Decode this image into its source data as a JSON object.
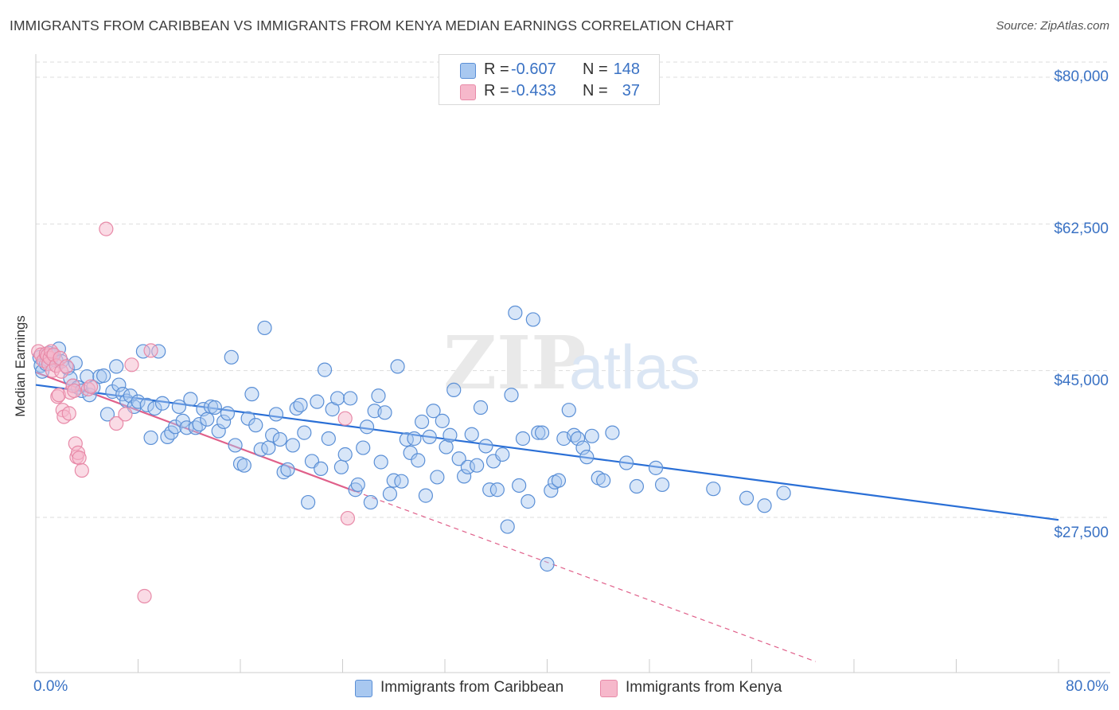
{
  "title": "IMMIGRANTS FROM CARIBBEAN VS IMMIGRANTS FROM KENYA MEDIAN EARNINGS CORRELATION CHART",
  "source": "Source: ZipAtlas.com",
  "watermark": {
    "zip": "ZIP",
    "atlas": "atlas"
  },
  "colors": {
    "caribbean_fill": "#a8c8f0",
    "caribbean_stroke": "#5a8fd6",
    "caribbean_line": "#2a6fd6",
    "kenya_fill": "#f6b8cb",
    "kenya_stroke": "#e88aa8",
    "kenya_line": "#e0608a",
    "tick_text": "#3a72c4",
    "grid": "#dddddd"
  },
  "legend": {
    "rows": [
      {
        "r_label": "R =",
        "r_value": "-0.607",
        "n_label": "N =",
        "n_value": "148",
        "series": "caribbean"
      },
      {
        "r_label": "R =",
        "r_value": "-0.433",
        "n_label": "N =",
        "n_value": "37",
        "series": "kenya"
      }
    ]
  },
  "bottom_legend": [
    "Immigrants from Caribbean",
    "Immigrants from Kenya"
  ],
  "chart_data": {
    "type": "scatter",
    "title": "IMMIGRANTS FROM CARIBBEAN VS IMMIGRANTS FROM KENYA MEDIAN EARNINGS CORRELATION CHART",
    "xlabel": "",
    "ylabel": "Median Earnings",
    "xlim": [
      0,
      80
    ],
    "ylim": [
      12000,
      83000
    ],
    "x_tick_labels": [
      "0.0%",
      "80.0%"
    ],
    "y_ticks": [
      27500,
      45000,
      62500,
      80000
    ],
    "y_tick_labels": [
      "$27,500",
      "$45,000",
      "$62,500",
      "$80,000"
    ],
    "grid": true,
    "legend_position": "top-center",
    "series": [
      {
        "name": "Immigrants from Caribbean",
        "r": -0.607,
        "n": 148,
        "trend": {
          "x": [
            0,
            80
          ],
          "y": [
            43300,
            27200
          ],
          "style": "solid"
        },
        "points": [
          [
            0.3,
            46.6
          ],
          [
            0.4,
            45.6
          ],
          [
            0.5,
            44.9
          ],
          [
            0.8,
            45.8
          ],
          [
            1.0,
            47.1
          ],
          [
            1.2,
            46.4
          ],
          [
            1.3,
            46.8
          ],
          [
            1.6,
            46.2
          ],
          [
            1.8,
            47.6
          ],
          [
            2.0,
            46.1
          ],
          [
            2.5,
            45.3
          ],
          [
            2.7,
            44.1
          ],
          [
            2.9,
            43.2
          ],
          [
            3.1,
            45.9
          ],
          [
            3.3,
            43.0
          ],
          [
            3.6,
            42.6
          ],
          [
            4.0,
            44.3
          ],
          [
            4.2,
            42.1
          ],
          [
            4.5,
            43.0
          ],
          [
            5.0,
            44.3
          ],
          [
            5.3,
            44.4
          ],
          [
            5.6,
            39.8
          ],
          [
            6.0,
            42.5
          ],
          [
            6.3,
            45.5
          ],
          [
            6.5,
            43.3
          ],
          [
            6.8,
            42.2
          ],
          [
            7.1,
            41.4
          ],
          [
            7.4,
            42.0
          ],
          [
            7.7,
            40.7
          ],
          [
            8.0,
            41.3
          ],
          [
            8.4,
            47.3
          ],
          [
            8.7,
            40.9
          ],
          [
            9.0,
            37.0
          ],
          [
            9.3,
            40.5
          ],
          [
            9.6,
            47.3
          ],
          [
            9.9,
            41.1
          ],
          [
            10.3,
            37.1
          ],
          [
            10.6,
            37.6
          ],
          [
            10.9,
            38.3
          ],
          [
            11.2,
            40.7
          ],
          [
            11.5,
            39.0
          ],
          [
            11.8,
            38.2
          ],
          [
            12.1,
            41.6
          ],
          [
            12.5,
            38.2
          ],
          [
            12.8,
            38.6
          ],
          [
            13.1,
            40.4
          ],
          [
            13.4,
            39.2
          ],
          [
            13.7,
            40.7
          ],
          [
            14.0,
            40.6
          ],
          [
            14.3,
            37.8
          ],
          [
            14.7,
            38.9
          ],
          [
            15.0,
            39.9
          ],
          [
            15.3,
            46.6
          ],
          [
            15.6,
            36.1
          ],
          [
            16.0,
            33.9
          ],
          [
            16.3,
            33.7
          ],
          [
            16.6,
            39.3
          ],
          [
            16.9,
            42.2
          ],
          [
            17.2,
            38.5
          ],
          [
            17.6,
            35.6
          ],
          [
            17.9,
            50.1
          ],
          [
            18.2,
            35.8
          ],
          [
            18.5,
            37.3
          ],
          [
            18.8,
            39.8
          ],
          [
            19.1,
            36.8
          ],
          [
            19.4,
            32.9
          ],
          [
            19.7,
            33.2
          ],
          [
            20.1,
            36.1
          ],
          [
            20.4,
            40.5
          ],
          [
            20.7,
            40.9
          ],
          [
            21.0,
            37.6
          ],
          [
            21.3,
            29.3
          ],
          [
            21.6,
            34.2
          ],
          [
            22.0,
            41.3
          ],
          [
            22.3,
            33.3
          ],
          [
            22.6,
            45.1
          ],
          [
            22.9,
            36.9
          ],
          [
            23.2,
            40.4
          ],
          [
            23.6,
            41.7
          ],
          [
            23.9,
            33.5
          ],
          [
            24.2,
            35.0
          ],
          [
            24.6,
            41.7
          ],
          [
            25.0,
            30.8
          ],
          [
            25.2,
            31.4
          ],
          [
            25.6,
            35.8
          ],
          [
            25.9,
            38.3
          ],
          [
            26.2,
            29.3
          ],
          [
            26.5,
            40.2
          ],
          [
            26.8,
            42.0
          ],
          [
            27.0,
            34.1
          ],
          [
            27.3,
            40.0
          ],
          [
            27.7,
            30.3
          ],
          [
            28.0,
            31.9
          ],
          [
            28.3,
            45.5
          ],
          [
            28.6,
            31.8
          ],
          [
            29.0,
            36.8
          ],
          [
            29.3,
            35.2
          ],
          [
            29.6,
            36.9
          ],
          [
            29.9,
            34.3
          ],
          [
            30.2,
            38.9
          ],
          [
            30.5,
            30.1
          ],
          [
            30.8,
            37.1
          ],
          [
            31.1,
            40.2
          ],
          [
            31.4,
            32.3
          ],
          [
            31.8,
            39.0
          ],
          [
            32.1,
            35.9
          ],
          [
            32.4,
            37.3
          ],
          [
            32.7,
            42.7
          ],
          [
            33.1,
            34.5
          ],
          [
            33.5,
            32.4
          ],
          [
            33.8,
            33.5
          ],
          [
            34.1,
            37.4
          ],
          [
            34.5,
            33.7
          ],
          [
            34.8,
            40.6
          ],
          [
            35.2,
            36.0
          ],
          [
            35.5,
            30.8
          ],
          [
            35.8,
            34.2
          ],
          [
            36.1,
            30.8
          ],
          [
            36.5,
            35.0
          ],
          [
            36.9,
            26.4
          ],
          [
            37.2,
            42.1
          ],
          [
            37.5,
            51.9
          ],
          [
            37.8,
            31.3
          ],
          [
            38.1,
            36.9
          ],
          [
            38.5,
            29.4
          ],
          [
            38.9,
            51.1
          ],
          [
            39.3,
            37.6
          ],
          [
            39.6,
            37.6
          ],
          [
            40.0,
            21.9
          ],
          [
            40.3,
            30.7
          ],
          [
            40.6,
            31.7
          ],
          [
            40.9,
            31.9
          ],
          [
            41.3,
            36.9
          ],
          [
            41.7,
            40.3
          ],
          [
            42.1,
            37.3
          ],
          [
            42.4,
            36.9
          ],
          [
            42.8,
            35.8
          ],
          [
            43.1,
            34.7
          ],
          [
            43.5,
            37.2
          ],
          [
            44.0,
            32.2
          ],
          [
            44.4,
            31.9
          ],
          [
            45.1,
            37.6
          ],
          [
            46.2,
            34.0
          ],
          [
            47.0,
            31.2
          ],
          [
            48.5,
            33.4
          ],
          [
            49.0,
            31.4
          ],
          [
            53.0,
            30.9
          ],
          [
            55.6,
            29.8
          ],
          [
            57.0,
            28.9
          ],
          [
            58.5,
            30.4
          ]
        ]
      },
      {
        "name": "Immigrants from Kenya",
        "r": -0.433,
        "n": 37,
        "trend": {
          "x": [
            0,
            25
          ],
          "y": [
            44800,
            30600
          ],
          "style": "solid",
          "extended_to": {
            "x": 61,
            "y": 10300,
            "style": "dashed"
          }
        },
        "points": [
          [
            0.2,
            47.3
          ],
          [
            0.4,
            46.9
          ],
          [
            0.6,
            46.2
          ],
          [
            0.8,
            47.0
          ],
          [
            0.9,
            46.8
          ],
          [
            1.0,
            45.8
          ],
          [
            1.1,
            46.5
          ],
          [
            1.2,
            47.3
          ],
          [
            1.3,
            45.0
          ],
          [
            1.4,
            46.9
          ],
          [
            1.6,
            45.6
          ],
          [
            1.7,
            41.9
          ],
          [
            1.8,
            42.1
          ],
          [
            1.9,
            46.5
          ],
          [
            2.0,
            44.9
          ],
          [
            2.1,
            40.3
          ],
          [
            2.2,
            39.5
          ],
          [
            2.4,
            45.5
          ],
          [
            2.6,
            39.9
          ],
          [
            2.7,
            42.4
          ],
          [
            2.9,
            43.2
          ],
          [
            3.0,
            42.6
          ],
          [
            3.1,
            36.3
          ],
          [
            3.2,
            34.7
          ],
          [
            3.3,
            35.2
          ],
          [
            3.4,
            34.6
          ],
          [
            3.6,
            33.1
          ],
          [
            4.1,
            42.8
          ],
          [
            4.3,
            43.1
          ],
          [
            5.5,
            61.9
          ],
          [
            6.3,
            38.7
          ],
          [
            7.0,
            39.8
          ],
          [
            7.5,
            45.7
          ],
          [
            9.0,
            47.4
          ],
          [
            24.2,
            39.3
          ],
          [
            24.4,
            27.4
          ],
          [
            8.5,
            18.1
          ]
        ]
      }
    ]
  }
}
